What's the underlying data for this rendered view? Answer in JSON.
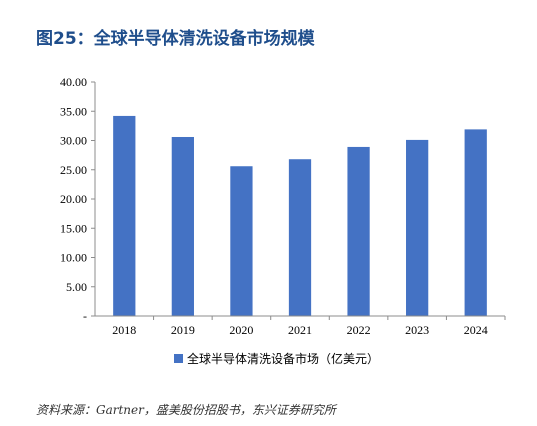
{
  "title": "图25：全球半导体清洗设备市场规模",
  "source": "资料来源：Gartner，盛美股份招股书，东兴证券研究所",
  "colors": {
    "bar": "#4472c4",
    "title": "#1f4e8c",
    "axis": "#8c8c8c"
  },
  "chart_data": {
    "type": "bar",
    "title": "",
    "xlabel": "",
    "ylabel": "",
    "categories": [
      "2018",
      "2019",
      "2020",
      "2021",
      "2022",
      "2023",
      "2024"
    ],
    "series": [
      {
        "name": "全球半导体清洗设备市场（亿美元）",
        "values": [
          34.2,
          30.6,
          25.6,
          26.8,
          28.9,
          30.1,
          31.9
        ]
      }
    ],
    "yticks": [
      "-",
      "5.00",
      "10.00",
      "15.00",
      "20.00",
      "25.00",
      "30.00",
      "35.00",
      "40.00"
    ],
    "ylim": [
      0,
      40
    ],
    "grid": false,
    "legend": "bottom"
  }
}
